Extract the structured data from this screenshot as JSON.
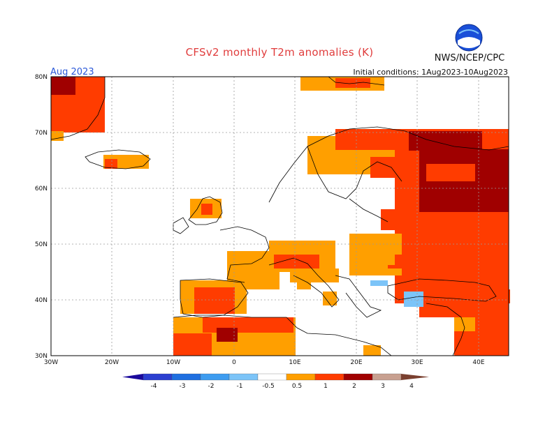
{
  "header": {
    "title": "CFSv2 monthly T2m anomalies (K)",
    "agency": "NWS/NCEP/CPC",
    "period": "Aug 2023",
    "initial_conditions": "Initial conditions: 1Aug2023-10Aug2023"
  },
  "axes": {
    "lon_labels": [
      "30W",
      "20W",
      "10W",
      "0",
      "10E",
      "20E",
      "30E",
      "40E"
    ],
    "lat_labels": [
      "80N",
      "70N",
      "60N",
      "50N",
      "40N",
      "30N"
    ]
  },
  "colorbar": {
    "labels": [
      "-4",
      "-3",
      "-2",
      "-1",
      "-0.5",
      "0.5",
      "1",
      "2",
      "3",
      "4"
    ],
    "colors": [
      "#1a0a9c",
      "#2b3fd0",
      "#1f6fe0",
      "#3d9cf0",
      "#7cc4f8",
      "#ffffff",
      "#ff9f00",
      "#ff3c00",
      "#a00000",
      "#c8a090",
      "#7a4030"
    ]
  },
  "colors": {
    "title": "#e03c3c",
    "period": "#2a58d8",
    "gridline": "#9a9a9a"
  }
}
